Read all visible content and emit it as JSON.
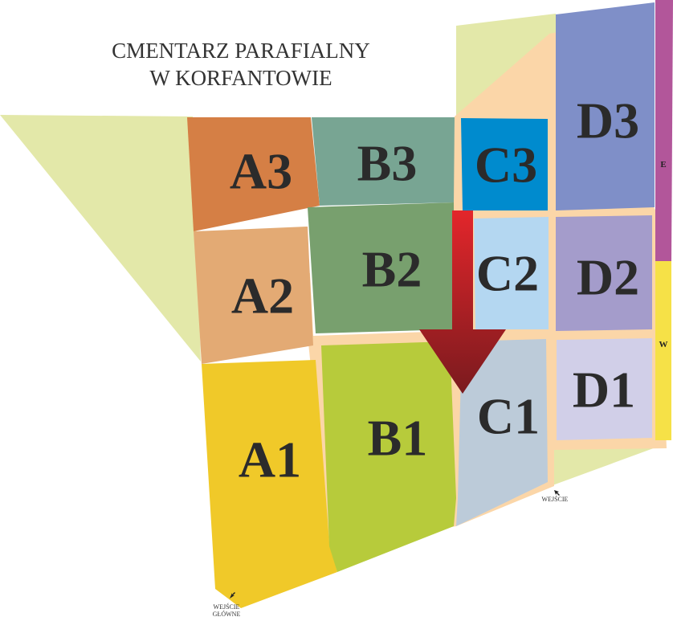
{
  "title": {
    "line1": "CMENTARZ PARAFIALNY",
    "line2": "W KORFANTOWIE"
  },
  "sectors": [
    {
      "id": "A3",
      "label": "A3",
      "color": "#d57f45"
    },
    {
      "id": "A2",
      "label": "A2",
      "color": "#e3aa74"
    },
    {
      "id": "A1",
      "label": "A1",
      "color": "#f0c929"
    },
    {
      "id": "B3",
      "label": "B3",
      "color": "#78a593"
    },
    {
      "id": "B2",
      "label": "B2",
      "color": "#78a06e"
    },
    {
      "id": "B1",
      "label": "B1",
      "color": "#b7cb3b"
    },
    {
      "id": "C3",
      "label": "C3",
      "color": "#008bce"
    },
    {
      "id": "C2",
      "label": "C2",
      "color": "#b4d7f1"
    },
    {
      "id": "C1",
      "label": "C1",
      "color": "#bccbd9"
    },
    {
      "id": "D3",
      "label": "D3",
      "color": "#7f8fc8"
    },
    {
      "id": "D2",
      "label": "D2",
      "color": "#a49ccb"
    },
    {
      "id": "D1",
      "label": "D1",
      "color": "#d1cfe8"
    }
  ],
  "strips": [
    {
      "label": "E",
      "color": "#b2569a"
    },
    {
      "label": "W",
      "color": "#f6e147"
    }
  ],
  "entrances": {
    "main_line1": "WEJŚCIE",
    "main_line2": "GŁÓWNE",
    "side": "WEJŚCIE"
  },
  "colors": {
    "grass": "#e3e8a9",
    "path": "#fbd6a8",
    "arrow": "#c4161c",
    "label": "#2b2b2b"
  },
  "icons": {
    "direction": "down-arrow",
    "entrance": "pointer-arrow"
  }
}
